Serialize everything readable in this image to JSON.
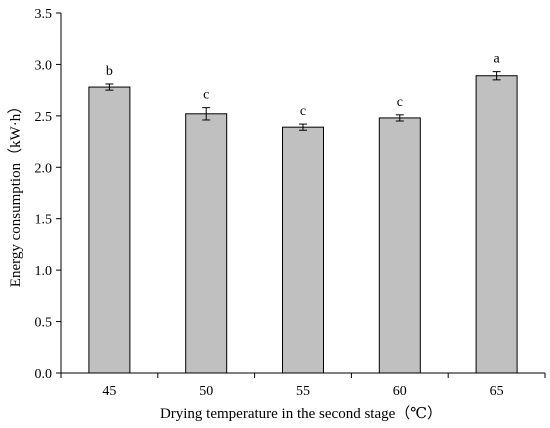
{
  "chart_data": {
    "type": "bar",
    "title": "",
    "xlabel": "Drying temperature in the second stage（℃）",
    "ylabel": "Energy consumption（kW·h）",
    "categories": [
      "45",
      "50",
      "55",
      "60",
      "65"
    ],
    "series": [
      {
        "values": [
          2.78,
          2.52,
          2.39,
          2.48,
          2.89
        ],
        "errors": [
          0.03,
          0.06,
          0.03,
          0.03,
          0.04
        ],
        "labels": [
          "b",
          "c",
          "c",
          "c",
          "a"
        ]
      }
    ],
    "ylim": [
      0,
      3.5
    ],
    "yticks": [
      "0.0",
      "0.5",
      "1.0",
      "1.5",
      "2.0",
      "2.5",
      "3.0",
      "3.5"
    ],
    "grid": false,
    "legend": "none",
    "colors": {
      "bar_fill": "#c0c0c0",
      "bar_stroke": "#000000",
      "axis": "#000000"
    }
  }
}
